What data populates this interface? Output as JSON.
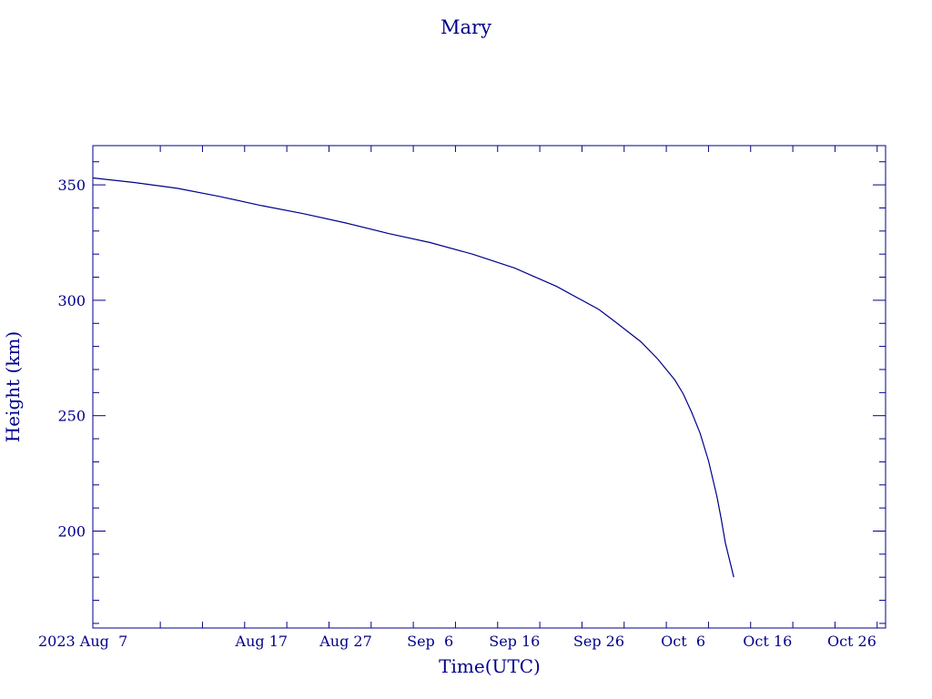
{
  "chart_data": {
    "type": "line",
    "title": "Mary",
    "xlabel": "Time(UTC)",
    "ylabel": "Height (km)",
    "color": "#00008b",
    "grid": false,
    "legend": "none",
    "xlim": [
      "2023-07-28",
      "2023-10-30"
    ],
    "ylim": [
      158,
      367
    ],
    "x_ticks": [
      {
        "date": "2023-08-07",
        "label": "2023 Aug  7"
      },
      {
        "date": "2023-08-17",
        "label": "Aug 17"
      },
      {
        "date": "2023-08-27",
        "label": "Aug 27"
      },
      {
        "date": "2023-09-06",
        "label": "Sep  6"
      },
      {
        "date": "2023-09-16",
        "label": "Sep 16"
      },
      {
        "date": "2023-09-26",
        "label": "Sep 26"
      },
      {
        "date": "2023-10-06",
        "label": "Oct  6"
      },
      {
        "date": "2023-10-16",
        "label": "Oct 16"
      },
      {
        "date": "2023-10-26",
        "label": "Oct 26"
      }
    ],
    "y_ticks": [
      {
        "value": 200,
        "label": "200"
      },
      {
        "value": 250,
        "label": "250"
      },
      {
        "value": 300,
        "label": "300"
      },
      {
        "value": 350,
        "label": "350"
      }
    ],
    "series": [
      {
        "x": [
          "2023-07-28",
          "2023-08-02",
          "2023-08-07",
          "2023-08-12",
          "2023-08-17",
          "2023-08-22",
          "2023-08-27",
          "2023-09-01",
          "2023-09-06",
          "2023-09-11",
          "2023-09-16",
          "2023-09-21",
          "2023-09-26",
          "2023-09-28",
          "2023-10-01",
          "2023-10-03",
          "2023-10-05",
          "2023-10-06",
          "2023-10-07",
          "2023-10-08",
          "2023-10-09",
          "2023-10-10",
          "2023-10-10T12:00",
          "2023-10-11",
          "2023-10-12"
        ],
        "y": [
          353,
          351,
          348.5,
          345,
          341,
          337.5,
          333.5,
          329,
          325,
          320,
          314,
          306,
          296,
          290.5,
          282,
          274.5,
          265.5,
          259.5,
          251.5,
          242.5,
          230.5,
          215,
          205.5,
          195,
          180
        ]
      }
    ]
  }
}
